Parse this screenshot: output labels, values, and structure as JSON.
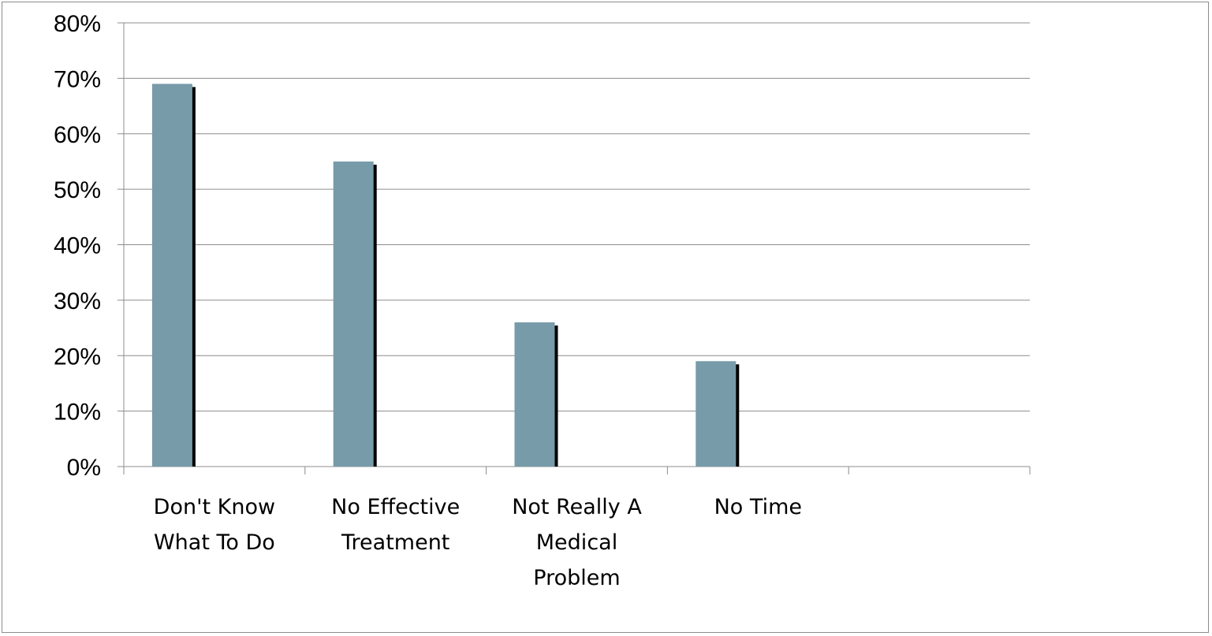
{
  "chart_data": {
    "type": "bar",
    "title": "",
    "xlabel": "",
    "ylabel": "",
    "categories": [
      [
        "Don't Know",
        "What To Do"
      ],
      [
        "No Effective",
        "Treatment"
      ],
      [
        "Not Really A",
        "Medical",
        "Problem"
      ],
      [
        "No Time"
      ],
      []
    ],
    "values": [
      69,
      55,
      26,
      19,
      null
    ],
    "ylim": [
      0,
      80
    ],
    "yticks": [
      "0%",
      "10%",
      "20%",
      "30%",
      "40%",
      "50%",
      "60%",
      "70%",
      "80%"
    ],
    "grid": true,
    "legend": "none",
    "colors": {
      "bar": "#779BA9",
      "bar_shadow": "#000000",
      "grid": "#8c8c8c",
      "axis": "#8c8c8c"
    }
  }
}
